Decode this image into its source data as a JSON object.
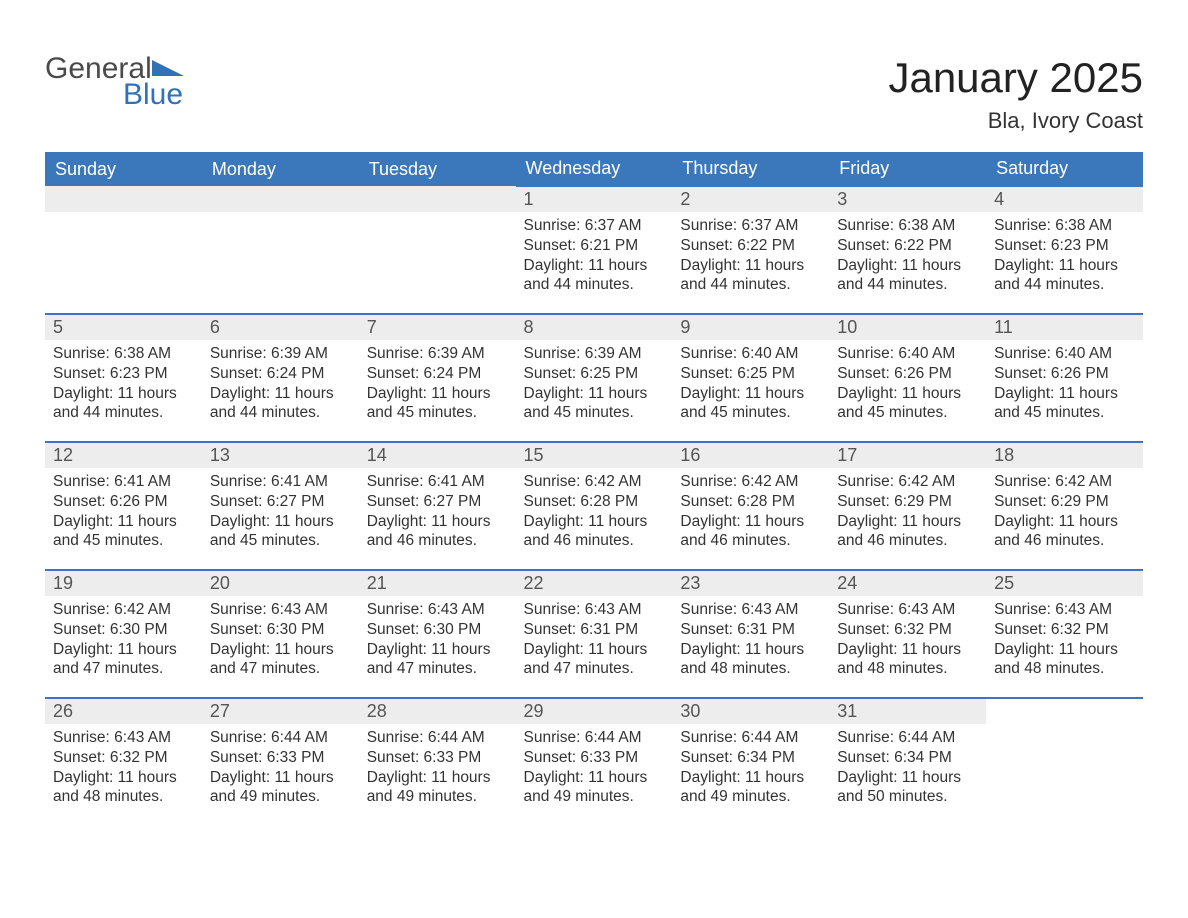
{
  "brand": {
    "general": "General",
    "blue": "Blue"
  },
  "colors": {
    "header_bg": "#3a78bb",
    "header_text": "#ffffff",
    "daynum_bg": "#ededed",
    "daynum_text": "#555555",
    "body_text": "#333333",
    "rule": "#3a78bb",
    "brand_grey": "#4a4a4a",
    "brand_blue": "#2f72b8",
    "page_bg": "#ffffff"
  },
  "title": "January 2025",
  "location": "Bla, Ivory Coast",
  "weekdays": [
    "Sunday",
    "Monday",
    "Tuesday",
    "Wednesday",
    "Thursday",
    "Friday",
    "Saturday"
  ],
  "labels": {
    "sunrise": "Sunrise: ",
    "sunset": "Sunset: ",
    "daylight": "Daylight: "
  },
  "weeks": [
    [
      null,
      null,
      null,
      {
        "n": "1",
        "sr": "6:37 AM",
        "ss": "6:21 PM",
        "dl": "11 hours and 44 minutes."
      },
      {
        "n": "2",
        "sr": "6:37 AM",
        "ss": "6:22 PM",
        "dl": "11 hours and 44 minutes."
      },
      {
        "n": "3",
        "sr": "6:38 AM",
        "ss": "6:22 PM",
        "dl": "11 hours and 44 minutes."
      },
      {
        "n": "4",
        "sr": "6:38 AM",
        "ss": "6:23 PM",
        "dl": "11 hours and 44 minutes."
      }
    ],
    [
      {
        "n": "5",
        "sr": "6:38 AM",
        "ss": "6:23 PM",
        "dl": "11 hours and 44 minutes."
      },
      {
        "n": "6",
        "sr": "6:39 AM",
        "ss": "6:24 PM",
        "dl": "11 hours and 44 minutes."
      },
      {
        "n": "7",
        "sr": "6:39 AM",
        "ss": "6:24 PM",
        "dl": "11 hours and 45 minutes."
      },
      {
        "n": "8",
        "sr": "6:39 AM",
        "ss": "6:25 PM",
        "dl": "11 hours and 45 minutes."
      },
      {
        "n": "9",
        "sr": "6:40 AM",
        "ss": "6:25 PM",
        "dl": "11 hours and 45 minutes."
      },
      {
        "n": "10",
        "sr": "6:40 AM",
        "ss": "6:26 PM",
        "dl": "11 hours and 45 minutes."
      },
      {
        "n": "11",
        "sr": "6:40 AM",
        "ss": "6:26 PM",
        "dl": "11 hours and 45 minutes."
      }
    ],
    [
      {
        "n": "12",
        "sr": "6:41 AM",
        "ss": "6:26 PM",
        "dl": "11 hours and 45 minutes."
      },
      {
        "n": "13",
        "sr": "6:41 AM",
        "ss": "6:27 PM",
        "dl": "11 hours and 45 minutes."
      },
      {
        "n": "14",
        "sr": "6:41 AM",
        "ss": "6:27 PM",
        "dl": "11 hours and 46 minutes."
      },
      {
        "n": "15",
        "sr": "6:42 AM",
        "ss": "6:28 PM",
        "dl": "11 hours and 46 minutes."
      },
      {
        "n": "16",
        "sr": "6:42 AM",
        "ss": "6:28 PM",
        "dl": "11 hours and 46 minutes."
      },
      {
        "n": "17",
        "sr": "6:42 AM",
        "ss": "6:29 PM",
        "dl": "11 hours and 46 minutes."
      },
      {
        "n": "18",
        "sr": "6:42 AM",
        "ss": "6:29 PM",
        "dl": "11 hours and 46 minutes."
      }
    ],
    [
      {
        "n": "19",
        "sr": "6:42 AM",
        "ss": "6:30 PM",
        "dl": "11 hours and 47 minutes."
      },
      {
        "n": "20",
        "sr": "6:43 AM",
        "ss": "6:30 PM",
        "dl": "11 hours and 47 minutes."
      },
      {
        "n": "21",
        "sr": "6:43 AM",
        "ss": "6:30 PM",
        "dl": "11 hours and 47 minutes."
      },
      {
        "n": "22",
        "sr": "6:43 AM",
        "ss": "6:31 PM",
        "dl": "11 hours and 47 minutes."
      },
      {
        "n": "23",
        "sr": "6:43 AM",
        "ss": "6:31 PM",
        "dl": "11 hours and 48 minutes."
      },
      {
        "n": "24",
        "sr": "6:43 AM",
        "ss": "6:32 PM",
        "dl": "11 hours and 48 minutes."
      },
      {
        "n": "25",
        "sr": "6:43 AM",
        "ss": "6:32 PM",
        "dl": "11 hours and 48 minutes."
      }
    ],
    [
      {
        "n": "26",
        "sr": "6:43 AM",
        "ss": "6:32 PM",
        "dl": "11 hours and 48 minutes."
      },
      {
        "n": "27",
        "sr": "6:44 AM",
        "ss": "6:33 PM",
        "dl": "11 hours and 49 minutes."
      },
      {
        "n": "28",
        "sr": "6:44 AM",
        "ss": "6:33 PM",
        "dl": "11 hours and 49 minutes."
      },
      {
        "n": "29",
        "sr": "6:44 AM",
        "ss": "6:33 PM",
        "dl": "11 hours and 49 minutes."
      },
      {
        "n": "30",
        "sr": "6:44 AM",
        "ss": "6:34 PM",
        "dl": "11 hours and 49 minutes."
      },
      {
        "n": "31",
        "sr": "6:44 AM",
        "ss": "6:34 PM",
        "dl": "11 hours and 50 minutes."
      },
      null
    ]
  ]
}
